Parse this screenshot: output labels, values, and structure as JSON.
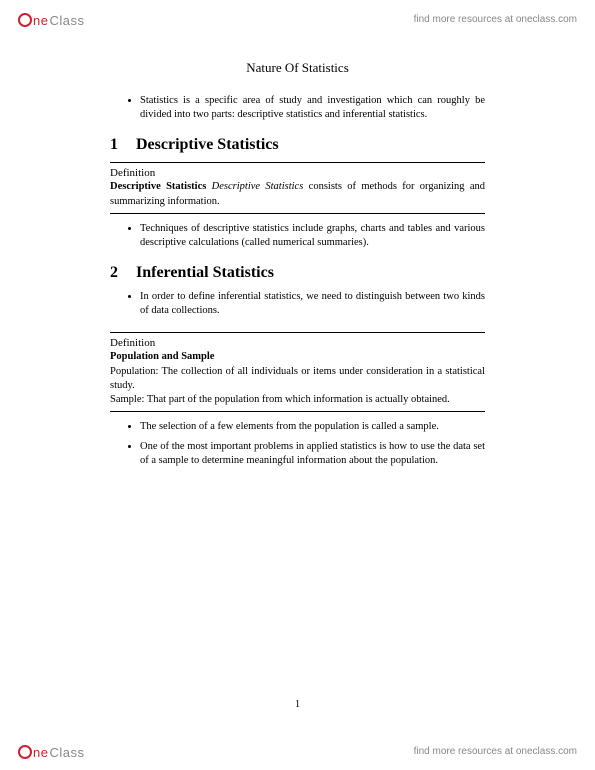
{
  "brand": {
    "logo_ne": "ne",
    "logo_class": "Class",
    "resources": "find more resources at oneclass.com",
    "circle_color": "#d01f2e"
  },
  "doc": {
    "title": "Nature Of Statistics",
    "intro_bullets": [
      "Statistics is a specific area of study and investigation which can roughly be divided into two parts: descriptive statistics and inferential statistics."
    ],
    "section1": {
      "num": "1",
      "title": "Descriptive Statistics",
      "def_label": "Definition",
      "def_bold": "Descriptive Statistics",
      "def_italic": "Descriptive Statistics",
      "def_rest": " consists of methods for organizing and summarizing information.",
      "bullets": [
        "Techniques of descriptive statistics include graphs, charts and tables and various descriptive calculations (called numerical summaries)."
      ]
    },
    "section2": {
      "num": "2",
      "title": "Inferential Statistics",
      "bullets_top": [
        "In order to define inferential statistics, we need to distinguish between two kinds of data collections."
      ],
      "def_label": "Definition",
      "def_bold": "Population and Sample",
      "def_line1": "Population: The collection of all individuals or items under consideration in a statistical study.",
      "def_line2": "Sample: That part of the population from which information is actually obtained.",
      "bullets_bottom": [
        {
          "pre": "The selection of a few elements from the population is called a ",
          "em": "sample",
          "post": "."
        },
        {
          "pre": "One of the most important problems in applied statistics is how to use the data set of a sample to determine meaningful information about the population.",
          "em": "",
          "post": ""
        }
      ]
    },
    "pagenum": "1"
  }
}
